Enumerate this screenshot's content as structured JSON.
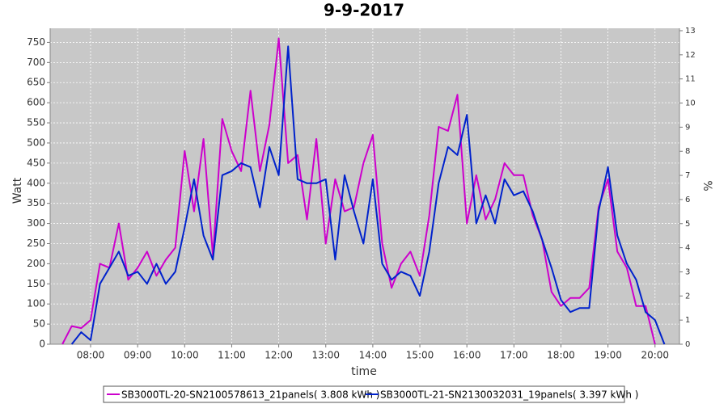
{
  "chart_data": {
    "type": "line",
    "title": "9-9-2017",
    "x_label": "time",
    "y_label": "Watt",
    "y2_label": "%",
    "x": [
      7.4,
      7.6,
      7.8,
      8.0,
      8.2,
      8.4,
      8.6,
      8.8,
      9.0,
      9.2,
      9.4,
      9.6,
      9.8,
      10.0,
      10.2,
      10.4,
      10.6,
      10.8,
      11.0,
      11.2,
      11.4,
      11.6,
      11.8,
      12.0,
      12.2,
      12.4,
      12.6,
      12.8,
      13.0,
      13.2,
      13.4,
      13.6,
      13.8,
      14.0,
      14.2,
      14.4,
      14.6,
      14.8,
      15.0,
      15.2,
      15.4,
      15.6,
      15.8,
      16.0,
      16.2,
      16.4,
      16.6,
      16.8,
      17.0,
      17.2,
      17.4,
      17.6,
      17.8,
      18.0,
      18.2,
      18.4,
      18.6,
      18.8,
      19.0,
      19.2,
      19.4,
      19.6,
      19.8,
      20.0,
      20.2
    ],
    "series": [
      {
        "name": "SB3000TL-20-SN2100578613_21panels( 3.808 kWh )",
        "color": "#cc00cc",
        "values": [
          0,
          45,
          40,
          60,
          200,
          190,
          300,
          160,
          190,
          230,
          170,
          210,
          240,
          480,
          330,
          510,
          220,
          560,
          480,
          430,
          630,
          430,
          545,
          760,
          450,
          470,
          310,
          510,
          250,
          410,
          330,
          340,
          450,
          520,
          250,
          140,
          200,
          230,
          170,
          320,
          540,
          530,
          620,
          300,
          420,
          310,
          360,
          450,
          420,
          420,
          320,
          260,
          130,
          95,
          115,
          115,
          140,
          340,
          410,
          230,
          190,
          95,
          95,
          0,
          null
        ]
      },
      {
        "name": "SB3000TL-21-SN2130032031_19panels( 3.397 kWh )",
        "color": "#0022cc",
        "values": [
          null,
          0,
          30,
          10,
          150,
          190,
          230,
          170,
          180,
          150,
          200,
          150,
          180,
          290,
          410,
          270,
          210,
          420,
          430,
          450,
          440,
          340,
          490,
          420,
          740,
          410,
          400,
          400,
          410,
          210,
          420,
          330,
          250,
          410,
          200,
          160,
          180,
          170,
          120,
          230,
          400,
          490,
          470,
          570,
          300,
          370,
          300,
          410,
          370,
          380,
          330,
          260,
          190,
          110,
          80,
          90,
          90,
          330,
          440,
          270,
          200,
          160,
          80,
          60,
          0
        ]
      }
    ],
    "xlim": [
      7.14,
      20.52
    ],
    "xticks": [
      {
        "value": 8,
        "label": "08:00"
      },
      {
        "value": 9,
        "label": "09:00"
      },
      {
        "value": 10,
        "label": "10:00"
      },
      {
        "value": 11,
        "label": "11:00"
      },
      {
        "value": 12,
        "label": "12:00"
      },
      {
        "value": 13,
        "label": "13:00"
      },
      {
        "value": 14,
        "label": "14:00"
      },
      {
        "value": 15,
        "label": "15:00"
      },
      {
        "value": 16,
        "label": "16:00"
      },
      {
        "value": 17,
        "label": "17:00"
      },
      {
        "value": 18,
        "label": "18:00"
      },
      {
        "value": 19,
        "label": "19:00"
      },
      {
        "value": 20,
        "label": "20:00"
      }
    ],
    "ylim": [
      0,
      785
    ],
    "yticks": [
      0,
      50,
      100,
      150,
      200,
      250,
      300,
      350,
      400,
      450,
      500,
      550,
      600,
      650,
      700,
      750
    ],
    "y2lim": [
      0,
      13.1
    ],
    "y2ticks": [
      0,
      1,
      2,
      3,
      4,
      5,
      6,
      7,
      8,
      9,
      10,
      11,
      12,
      13
    ],
    "grid": true
  }
}
